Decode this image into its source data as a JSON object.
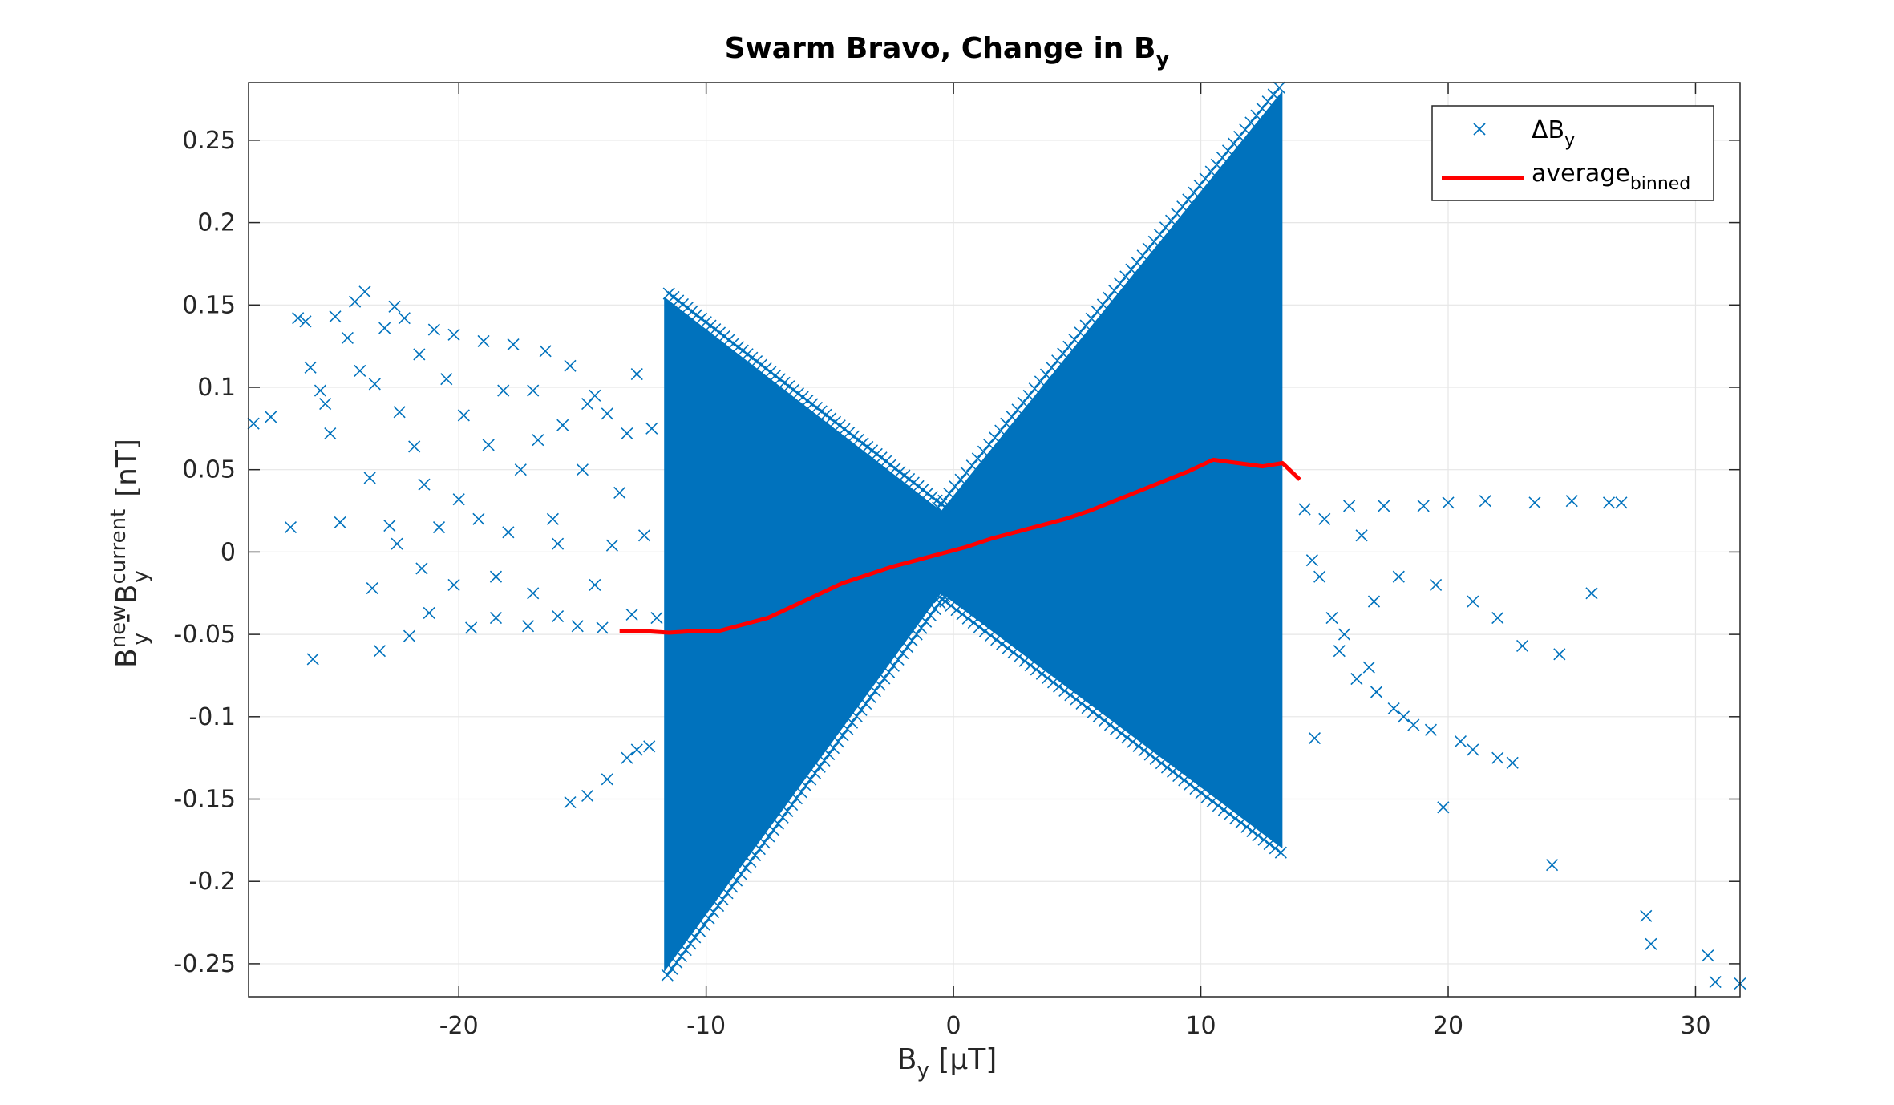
{
  "chart_data": {
    "type": "scatter",
    "title": {
      "main": "Swarm Bravo, Change in B",
      "sub": "y"
    },
    "xlabel": {
      "base": "B",
      "sub": "y",
      "rest": " [μT]"
    },
    "ylabel": {
      "b1": "B",
      "sup1": "new",
      "sub1": "y",
      "mid": " - B",
      "sup2": "current",
      "sub2": "y",
      "rest": " [nT]"
    },
    "xlim": [
      -28.5,
      31.8
    ],
    "ylim": [
      -0.27,
      0.285
    ],
    "xticks": [
      -20,
      -10,
      0,
      10,
      20,
      30
    ],
    "xtick_labels": [
      "-20",
      "-10",
      "0",
      "10",
      "20",
      "30"
    ],
    "yticks": [
      -0.25,
      -0.2,
      -0.15,
      -0.1,
      -0.05,
      0,
      0.05,
      0.1,
      0.15,
      0.2,
      0.25
    ],
    "ytick_labels": [
      "-0.25",
      "-0.2",
      "-0.15",
      "-0.1",
      "-0.05",
      "0",
      "0.05",
      "0.1",
      "0.15",
      "0.2",
      "0.25"
    ],
    "grid": true,
    "legend_position": "top-right",
    "colors": {
      "scatter": "#0072BD",
      "average": "#FF0000",
      "grid": "#e6e6e6",
      "axes": "#262626"
    },
    "series": [
      {
        "name": "ΔB",
        "name_sub": "y",
        "kind": "scatter",
        "marker": "x",
        "description_points": "dense band between x=-11.7 and x=13.3 forming an hourglass; sparse points outside",
        "band": {
          "x_range": [
            -11.7,
            13.3
          ],
          "upper_left": {
            "x": -11.7,
            "y": 0.155
          },
          "pinch_upper": {
            "x": -0.5,
            "y": 0.025
          },
          "upper_right": {
            "x": 13.3,
            "y": 0.28
          },
          "lower_left": {
            "x": -11.7,
            "y": -0.255
          },
          "pinch_lower": {
            "x": -0.5,
            "y": -0.025
          },
          "lower_right": {
            "x": 13.3,
            "y": -0.18
          }
        },
        "outliers": [
          [
            -28.3,
            0.078
          ],
          [
            -27.6,
            0.082
          ],
          [
            -26.8,
            0.015
          ],
          [
            -26.5,
            0.142
          ],
          [
            -26.2,
            0.14
          ],
          [
            -26,
            0.112
          ],
          [
            -25.9,
            -0.065
          ],
          [
            -25.6,
            0.098
          ],
          [
            -25.4,
            0.09
          ],
          [
            -25.2,
            0.072
          ],
          [
            -25,
            0.143
          ],
          [
            -24.8,
            0.018
          ],
          [
            -24.5,
            0.13
          ],
          [
            -24.2,
            0.152
          ],
          [
            -24,
            0.11
          ],
          [
            -23.8,
            0.158
          ],
          [
            -23.6,
            0.045
          ],
          [
            -23.4,
            0.102
          ],
          [
            -23.2,
            -0.06
          ],
          [
            -23,
            0.136
          ],
          [
            -22.8,
            0.016
          ],
          [
            -22.6,
            0.149
          ],
          [
            -22.4,
            0.085
          ],
          [
            -22.2,
            0.142
          ],
          [
            -22,
            -0.051
          ],
          [
            -21.8,
            0.064
          ],
          [
            -21.6,
            0.12
          ],
          [
            -21.4,
            0.041
          ],
          [
            -21.2,
            -0.037
          ],
          [
            -21,
            0.135
          ],
          [
            -20.8,
            0.015
          ],
          [
            -20.5,
            0.105
          ],
          [
            -20.2,
            0.132
          ],
          [
            -20,
            0.032
          ],
          [
            -19.8,
            0.083
          ],
          [
            -19.5,
            -0.046
          ],
          [
            -19.2,
            0.02
          ],
          [
            -19,
            0.128
          ],
          [
            -18.8,
            0.065
          ],
          [
            -18.5,
            -0.04
          ],
          [
            -18.2,
            0.098
          ],
          [
            -18,
            0.012
          ],
          [
            -17.8,
            0.126
          ],
          [
            -17.5,
            0.05
          ],
          [
            -17.2,
            -0.045
          ],
          [
            -17,
            0.098
          ],
          [
            -16.8,
            0.068
          ],
          [
            -16.5,
            0.122
          ],
          [
            -16.2,
            0.02
          ],
          [
            -16,
            -0.039
          ],
          [
            -15.8,
            0.077
          ],
          [
            -15.5,
            0.113
          ],
          [
            -15.2,
            -0.045
          ],
          [
            -15,
            0.05
          ],
          [
            -14.8,
            0.09
          ],
          [
            -14.5,
            0.095
          ],
          [
            -14.2,
            -0.046
          ],
          [
            -14,
            0.084
          ],
          [
            -13.8,
            0.004
          ],
          [
            -13.5,
            0.036
          ],
          [
            -13.2,
            0.072
          ],
          [
            -13,
            -0.038
          ],
          [
            -12.8,
            0.108
          ],
          [
            -12.5,
            0.01
          ],
          [
            -12.2,
            0.075
          ],
          [
            -12,
            -0.04
          ],
          [
            -15.5,
            -0.152
          ],
          [
            -14.8,
            -0.148
          ],
          [
            -14,
            -0.138
          ],
          [
            -13.2,
            -0.125
          ],
          [
            -12.8,
            -0.12
          ],
          [
            -12.3,
            -0.118
          ],
          [
            -20.2,
            -0.02
          ],
          [
            -21.5,
            -0.01
          ],
          [
            -22.5,
            0.005
          ],
          [
            -23.5,
            -0.022
          ],
          [
            -18.5,
            -0.015
          ],
          [
            -17,
            -0.025
          ],
          [
            -16,
            0.005
          ],
          [
            -14.5,
            -0.02
          ],
          [
            14.2,
            0.026
          ],
          [
            14.8,
            -0.015
          ],
          [
            15.3,
            -0.04
          ],
          [
            15.6,
            -0.06
          ],
          [
            16,
            0.028
          ],
          [
            16.3,
            -0.077
          ],
          [
            16.8,
            -0.07
          ],
          [
            17.1,
            -0.085
          ],
          [
            17.4,
            0.028
          ],
          [
            17.8,
            -0.095
          ],
          [
            18.2,
            -0.1
          ],
          [
            18.6,
            -0.105
          ],
          [
            19,
            0.028
          ],
          [
            19.3,
            -0.108
          ],
          [
            19.8,
            -0.155
          ],
          [
            20,
            0.03
          ],
          [
            20.5,
            -0.115
          ],
          [
            21,
            -0.12
          ],
          [
            21.5,
            0.031
          ],
          [
            22,
            -0.125
          ],
          [
            22.6,
            -0.128
          ],
          [
            23,
            -0.057
          ],
          [
            23.5,
            0.03
          ],
          [
            24.2,
            -0.19
          ],
          [
            24.5,
            -0.062
          ],
          [
            25,
            0.031
          ],
          [
            25.8,
            -0.025
          ],
          [
            26.5,
            0.03
          ],
          [
            27,
            0.03
          ],
          [
            28,
            -0.221
          ],
          [
            28.2,
            -0.238
          ],
          [
            30.5,
            -0.245
          ],
          [
            30.8,
            -0.261
          ],
          [
            31.8,
            -0.262
          ],
          [
            31.9,
            -0.271
          ],
          [
            14.5,
            -0.005
          ],
          [
            15,
            0.02
          ],
          [
            16.5,
            0.01
          ],
          [
            18,
            -0.015
          ],
          [
            19.5,
            -0.02
          ],
          [
            21,
            -0.03
          ],
          [
            22,
            -0.04
          ],
          [
            14.6,
            -0.113
          ],
          [
            15.8,
            -0.05
          ],
          [
            17,
            -0.03
          ]
        ]
      },
      {
        "name": "average",
        "name_sub": "binned",
        "kind": "line",
        "x": [
          -13.5,
          -12.5,
          -11.5,
          -10.5,
          -9.5,
          -8.5,
          -7.5,
          -6.5,
          -5.5,
          -4.5,
          -3.5,
          -2.5,
          -1.5,
          -0.5,
          0.5,
          1.5,
          2.5,
          3.5,
          4.5,
          5.5,
          6.5,
          7.5,
          8.5,
          9.5,
          10.5,
          11.5,
          12.5,
          13.3,
          14
        ],
        "y": [
          -0.048,
          -0.048,
          -0.049,
          -0.048,
          -0.048,
          -0.044,
          -0.04,
          -0.033,
          -0.026,
          -0.019,
          -0.014,
          -0.009,
          -0.005,
          -0.001,
          0.003,
          0.008,
          0.012,
          0.016,
          0.02,
          0.025,
          0.031,
          0.037,
          0.043,
          0.049,
          0.056,
          0.054,
          0.052,
          0.054,
          0.044
        ]
      }
    ]
  }
}
